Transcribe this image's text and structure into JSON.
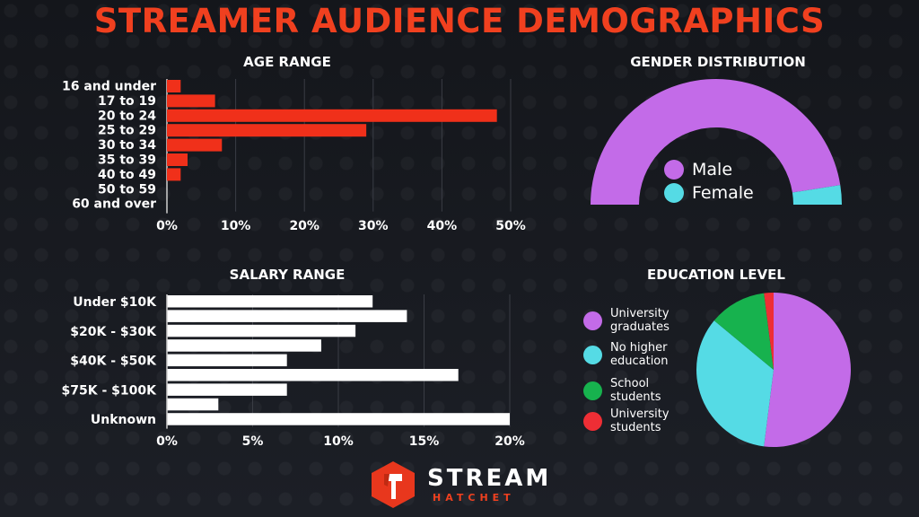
{
  "title": "STREAMER AUDIENCE DEMOGRAPHICS",
  "colors": {
    "accent": "#f0401f",
    "male": "#c36be8",
    "female": "#55dbe5",
    "edu_grads": "#c36be8",
    "edu_nohigher": "#55dbe5",
    "edu_school": "#17b24e",
    "edu_univ_students": "#ee2e35",
    "salary_bar": "#ffffff",
    "age_bar": "#f0301a"
  },
  "logo": {
    "line1": "STREAM",
    "line2": "HATCHET",
    "mark": "hatchet-logo-icon"
  },
  "chart_data": [
    {
      "id": "age",
      "type": "bar",
      "orientation": "horizontal",
      "title": "AGE RANGE",
      "categories": [
        "16 and under",
        "17 to 19",
        "20 to 24",
        "25 to 29",
        "30 to 34",
        "35 to 39",
        "40 to 49",
        "50 to 59",
        "60 and over"
      ],
      "values": [
        2,
        7,
        48,
        29,
        8,
        3,
        2,
        0,
        0
      ],
      "xlim": [
        0,
        50
      ],
      "xticks": [
        "0%",
        "10%",
        "20%",
        "30%",
        "40%",
        "50%"
      ],
      "xtick_values": [
        0,
        10,
        20,
        30,
        40,
        50
      ],
      "grid": true
    },
    {
      "id": "gender",
      "type": "pie",
      "variant": "half-donut",
      "title": "GENDER DISTRIBUTION",
      "labels": [
        "Male",
        "Female"
      ],
      "values": [
        95,
        5
      ],
      "legend": "inside"
    },
    {
      "id": "salary",
      "type": "bar",
      "orientation": "horizontal",
      "title": "SALARY RANGE",
      "bar_count": 9,
      "categories_printed": [
        "Under $10K",
        "$20K - $30K",
        "$40K - $50K",
        "$75K - $100K",
        "Unknown"
      ],
      "categories_printed_rows": [
        0,
        2,
        4,
        6,
        8
      ],
      "values": [
        12,
        14,
        11,
        9,
        7,
        17,
        7,
        3,
        20
      ],
      "xlim": [
        0,
        20
      ],
      "xticks": [
        "0%",
        "5%",
        "10%",
        "15%",
        "20%"
      ],
      "xtick_values": [
        0,
        5,
        10,
        15,
        20
      ],
      "grid": true
    },
    {
      "id": "education",
      "type": "pie",
      "title": "EDUCATION LEVEL",
      "labels": [
        "University graduates",
        "No higher education",
        "School students",
        "University students"
      ],
      "label_lines": [
        [
          "University",
          "graduates"
        ],
        [
          "No higher",
          "education"
        ],
        [
          "School",
          "students"
        ],
        [
          "University",
          "students"
        ]
      ],
      "values": [
        52,
        34,
        12,
        2
      ],
      "legend": "left"
    }
  ]
}
